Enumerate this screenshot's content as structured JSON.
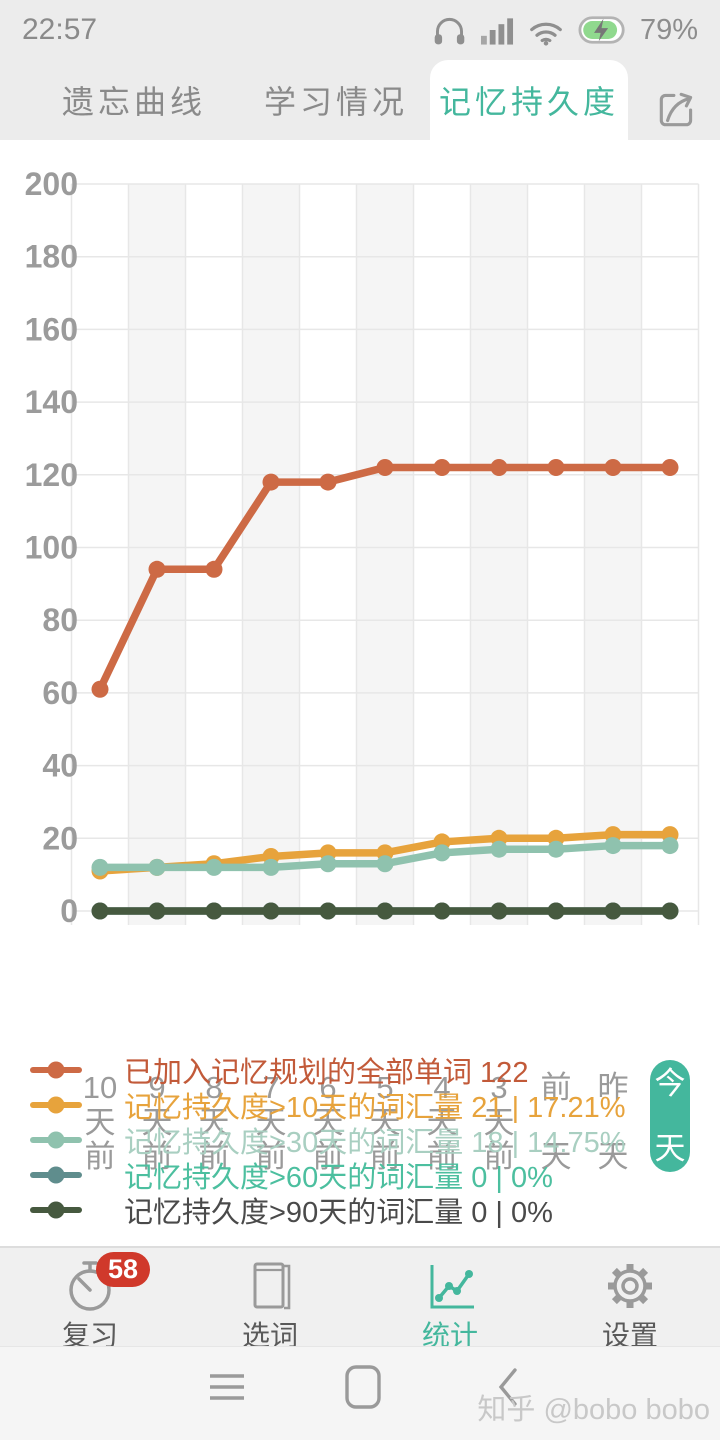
{
  "colors": {
    "accent_teal": "#44b79d",
    "badge_red": "#d0392b",
    "chart_band": "#f5f5f5",
    "chart_grid": "#e7e7e7",
    "axis_label_gray": "#9b9b9b",
    "tab_bar_bg": "#ececec"
  },
  "status_bar": {
    "time": "22:57",
    "battery_percent": "79%",
    "icons": [
      "headset-icon",
      "signal-bars-icon",
      "wifi-icon",
      "battery-charging-icon"
    ]
  },
  "tabs": [
    {
      "label": "遗忘曲线",
      "active": false
    },
    {
      "label": "学习情况",
      "active": false
    },
    {
      "label": "记忆持久度",
      "active": true
    }
  ],
  "share_button": {
    "icon": "share-icon"
  },
  "chart_data": {
    "type": "line",
    "x_categories": [
      "10天前",
      "9天前",
      "8天前",
      "7天前",
      "6天前",
      "5天前",
      "4天前",
      "3天前",
      "前天",
      "昨天",
      "今天"
    ],
    "highlighted_category": "今天",
    "ylim": [
      0,
      200
    ],
    "y_tick_step": 20,
    "grid": true,
    "legend_position": "bottom",
    "series": [
      {
        "name": "已加入记忆规划的全部单词 122",
        "color": "#cd6a45",
        "values": [
          61,
          94,
          94,
          118,
          118,
          122,
          122,
          122,
          122,
          122,
          122
        ]
      },
      {
        "name": "记忆持久度>10天的词汇量 21 | 17.21%",
        "color": "#e7a33c",
        "values": [
          11,
          12,
          13,
          15,
          16,
          16,
          19,
          20,
          20,
          21,
          21
        ]
      },
      {
        "name": "记忆持久度>30天的词汇量 18 | 14.75%",
        "color": "#8fc2ae",
        "values": [
          12,
          12,
          12,
          12,
          13,
          13,
          16,
          17,
          17,
          18,
          18
        ]
      },
      {
        "name": "记忆持久度>60天的词汇量 0 | 0%",
        "color": "#5f8d8d",
        "values": [
          0,
          0,
          0,
          0,
          0,
          0,
          0,
          0,
          0,
          0,
          0
        ]
      },
      {
        "name": "记忆持久度>90天的词汇量 0 | 0%",
        "color": "#46593f",
        "values": [
          0,
          0,
          0,
          0,
          0,
          0,
          0,
          0,
          0,
          0,
          0
        ]
      }
    ]
  },
  "legend": {
    "items": [
      {
        "label": "已加入记忆规划的全部单词 122",
        "swatch_color": "#cd6a45",
        "text_color": "#c25a39"
      },
      {
        "label": "记忆持久度>10天的词汇量 21 | 17.21%",
        "swatch_color": "#e7a33c",
        "text_color": "#e7a33c"
      },
      {
        "label": "记忆持久度>30天的词汇量 18 | 14.75%",
        "swatch_color": "#8fc2ae",
        "text_color": "#a9cfc1"
      },
      {
        "label": "记忆持久度>60天的词汇量 0 | 0%",
        "swatch_color": "#5f8d8d",
        "text_color": "#4cbf9f"
      },
      {
        "label": "记忆持久度>90天的词汇量 0 | 0%",
        "swatch_color": "#46593f",
        "text_color": "#4a4a4a"
      }
    ]
  },
  "bottom_nav": {
    "items": [
      {
        "label": "复习",
        "icon": "stopwatch-icon",
        "badge": "58",
        "active": false
      },
      {
        "label": "选词",
        "icon": "book-icon",
        "badge": "",
        "active": false
      },
      {
        "label": "统计",
        "icon": "stats-chart-icon",
        "badge": "",
        "active": true
      },
      {
        "label": "设置",
        "icon": "gear-icon",
        "badge": "",
        "active": false
      }
    ]
  },
  "system_nav": {
    "icons": [
      "menu-icon",
      "home-icon",
      "back-icon"
    ],
    "watermark": "知乎 @bobo bobo"
  }
}
